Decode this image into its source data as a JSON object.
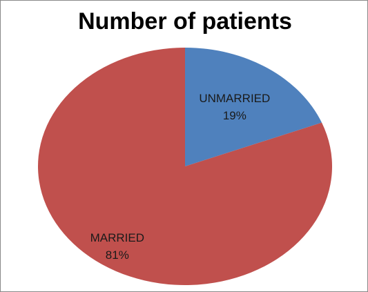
{
  "chart_data": {
    "type": "pie",
    "title": "Number of patients",
    "categories": [
      "UNMARRIED",
      "MARRIED"
    ],
    "values": [
      19,
      81
    ],
    "value_labels": [
      "19%",
      "81%"
    ],
    "colors": [
      "#4f81bd",
      "#c0504d"
    ]
  }
}
